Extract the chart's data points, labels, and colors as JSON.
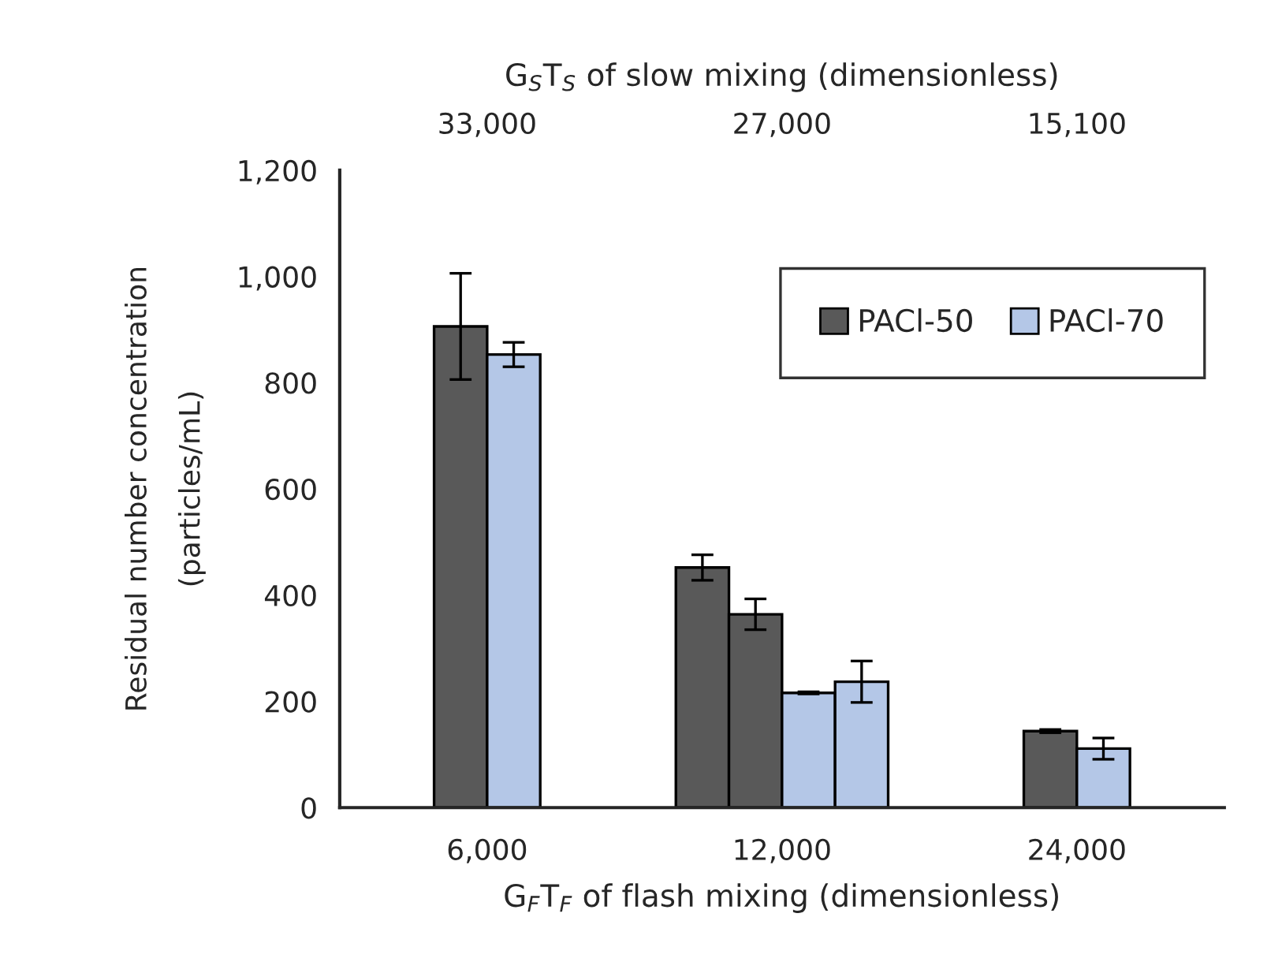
{
  "chart_data": {
    "type": "bar",
    "categories": [
      "6,000",
      "12,000",
      "24,000"
    ],
    "annotations": [
      "33,000",
      "27,000",
      "15,100"
    ],
    "xlabel": "G$_{F}$T$_{F}$ of flash mixing (dimensionless)",
    "x2label": "G$_{S}$T$_{S}$ of slow mixing (dimensionless)",
    "ylabel": "Residual number concentration\n(particles/mL)",
    "series": [
      {
        "name": "PACl-50",
        "color": "#595959",
        "values": [
          906,
          452,
          144
        ],
        "errors": [
          100,
          24,
          3
        ]
      },
      {
        "color": "#595959",
        "values": [
          null,
          364,
          null
        ],
        "errors": [
          null,
          29,
          null
        ]
      },
      {
        "color": "#b4c7e7",
        "values": [
          null,
          216,
          null
        ],
        "errors": [
          null,
          2,
          null
        ]
      },
      {
        "name": "PACl-70",
        "color": "#b4c7e7",
        "values": [
          853,
          237,
          111
        ],
        "errors": [
          23,
          39,
          20
        ]
      }
    ],
    "ylim": [
      0,
      1200
    ],
    "yticks": [
      0,
      {
        "value": 200,
        "label": "200"
      },
      {
        "value": 400,
        "label": "400"
      },
      {
        "value": 600,
        "label": "600"
      },
      {
        "value": 800,
        "label": "800"
      },
      {
        "value": 1000,
        "label": "1,000"
      },
      {
        "value": 1200,
        "label": "1,200"
      }
    ],
    "grid": false,
    "legend": "top right"
  }
}
